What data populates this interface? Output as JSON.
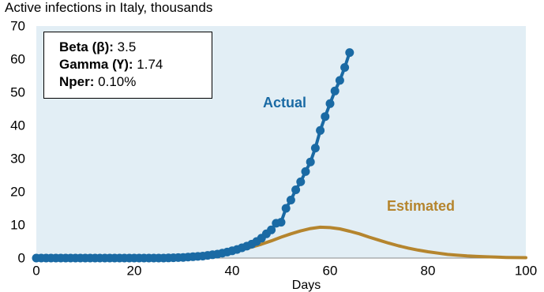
{
  "chart_data": {
    "type": "line",
    "title": "Active infections in Italy, thousands",
    "xlabel": "Days",
    "ylabel": "",
    "xlim": [
      0,
      100
    ],
    "ylim": [
      0,
      70
    ],
    "xticks": [
      0,
      20,
      40,
      60,
      80,
      100
    ],
    "yticks": [
      0,
      10,
      20,
      30,
      40,
      50,
      60,
      70
    ],
    "grid": false,
    "background_color": "#e2eef5",
    "parameters": [
      {
        "key": "Beta (β):",
        "value": "3.5"
      },
      {
        "key": "Gamma (Ү):",
        "value": "1.74"
      },
      {
        "key": "Nper:",
        "value": "0.10%"
      }
    ],
    "series": [
      {
        "name": "Actual",
        "color": "#1a6aa4",
        "markers": true,
        "x": [
          0,
          1,
          2,
          3,
          4,
          5,
          6,
          7,
          8,
          9,
          10,
          11,
          12,
          13,
          14,
          15,
          16,
          17,
          18,
          19,
          20,
          21,
          22,
          23,
          24,
          25,
          26,
          27,
          28,
          29,
          30,
          31,
          32,
          33,
          34,
          35,
          36,
          37,
          38,
          39,
          40,
          41,
          42,
          43,
          44,
          45,
          46,
          47,
          48,
          49,
          50,
          51,
          52,
          53,
          54,
          55,
          56,
          57,
          58,
          59,
          60,
          61,
          62,
          63,
          64
        ],
        "y": [
          0,
          0,
          0,
          0,
          0,
          0,
          0,
          0,
          0,
          0,
          0,
          0,
          0,
          0,
          0,
          0,
          0,
          0,
          0,
          0,
          0,
          0,
          0,
          0,
          0,
          0,
          0,
          0.05,
          0.1,
          0.15,
          0.2,
          0.3,
          0.4,
          0.5,
          0.6,
          0.8,
          1.0,
          1.2,
          1.5,
          1.8,
          2.2,
          2.6,
          3.1,
          3.6,
          4.2,
          5.0,
          6.0,
          7.3,
          8.5,
          10.5,
          10.8,
          15.0,
          17.5,
          20.6,
          23.0,
          26.1,
          29.0,
          33.2,
          38.5,
          42.7,
          46.6,
          50.4,
          53.6,
          57.5,
          62.0
        ]
      },
      {
        "name": "Estimated",
        "color": "#b5852e",
        "markers": false,
        "x": [
          0,
          5,
          10,
          15,
          20,
          25,
          30,
          35,
          38,
          40,
          42,
          44,
          46,
          48,
          50,
          52,
          54,
          56,
          58,
          60,
          62,
          64,
          66,
          68,
          70,
          72,
          74,
          76,
          78,
          80,
          82,
          84,
          86,
          88,
          90,
          92,
          94,
          96,
          98,
          100
        ],
        "y": [
          0.01,
          0.02,
          0.04,
          0.07,
          0.12,
          0.25,
          0.5,
          1.0,
          1.5,
          2.0,
          2.6,
          3.3,
          4.2,
          5.2,
          6.3,
          7.3,
          8.2,
          8.9,
          9.3,
          9.2,
          8.8,
          8.1,
          7.3,
          6.3,
          5.4,
          4.5,
          3.7,
          3.0,
          2.4,
          1.9,
          1.5,
          1.1,
          0.85,
          0.65,
          0.5,
          0.38,
          0.28,
          0.2,
          0.15,
          0.11
        ]
      }
    ]
  }
}
